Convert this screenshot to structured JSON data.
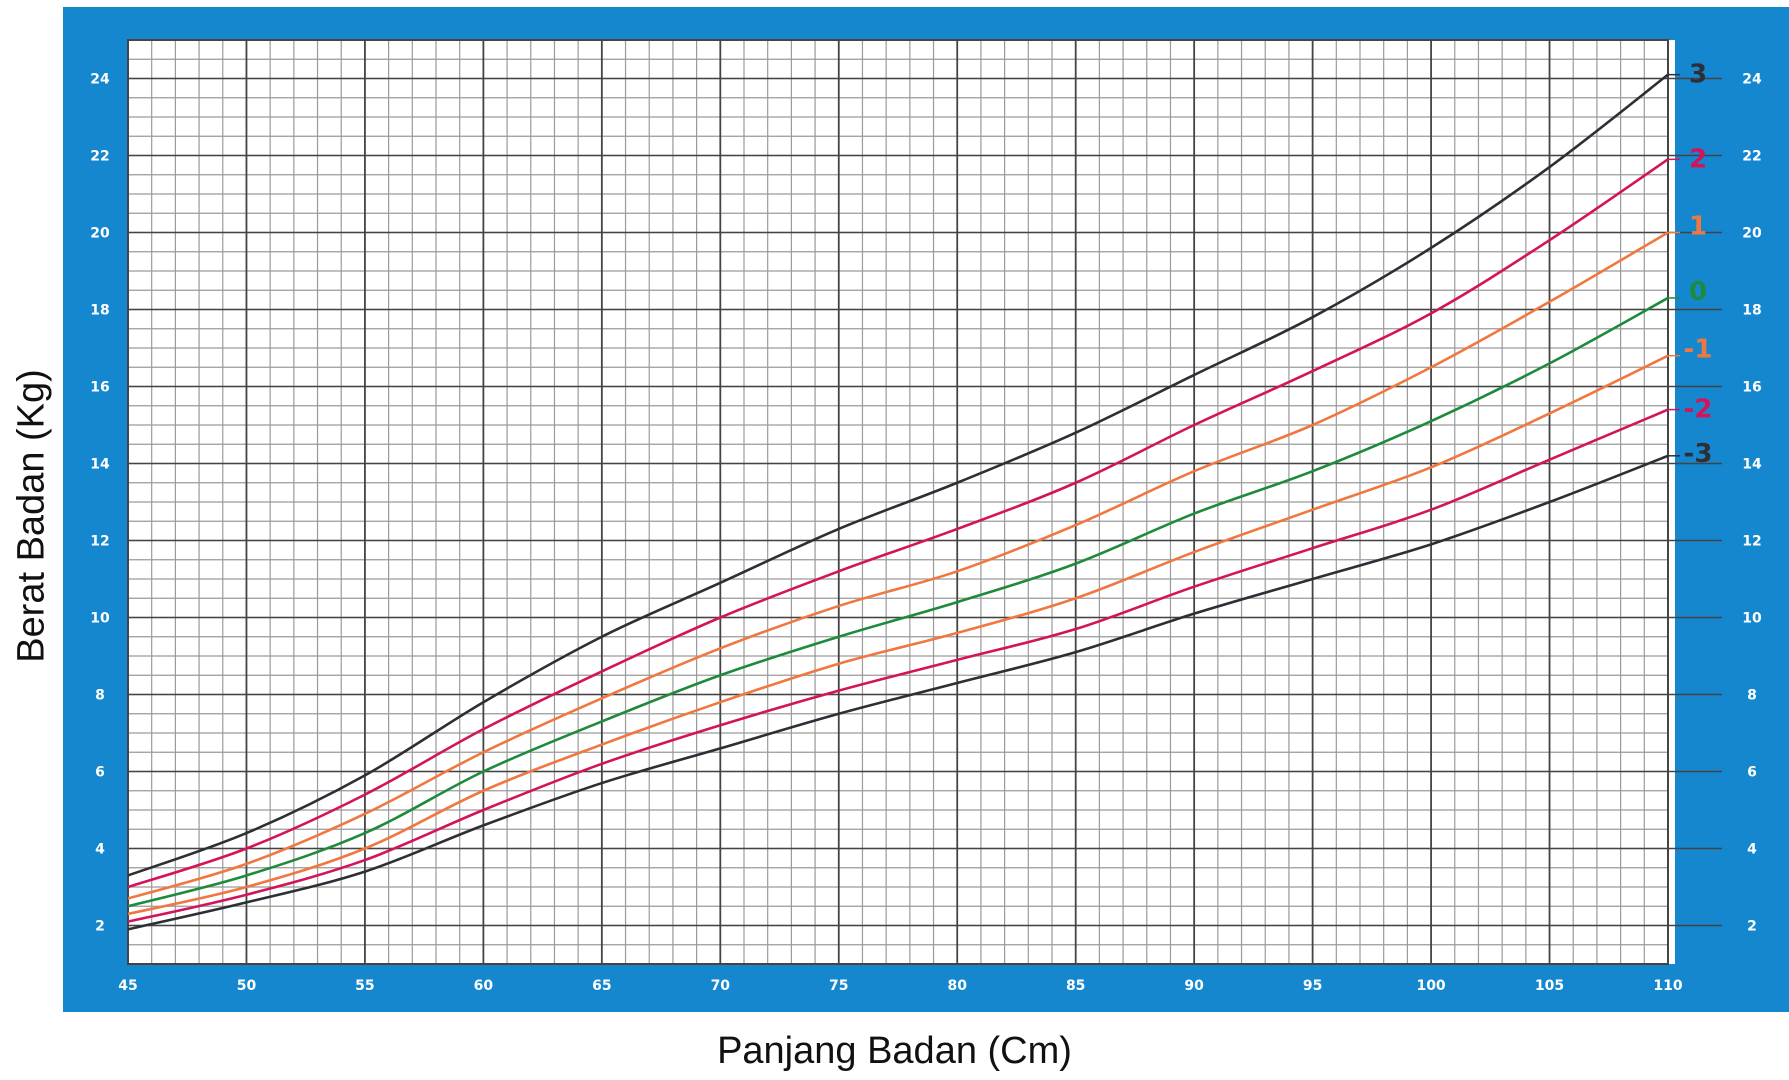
{
  "chart_data": {
    "type": "line",
    "title": "",
    "xlabel": "Panjang Badan (Cm)",
    "ylabel": "Berat Badan (Kg)",
    "xlim": [
      45,
      110
    ],
    "ylim": [
      1,
      25
    ],
    "x_ticks": [
      "45",
      "50",
      "55",
      "60",
      "65",
      "70",
      "75",
      "80",
      "85",
      "90",
      "95",
      "100",
      "105",
      "110"
    ],
    "y_ticks": [
      "2",
      "4",
      "6",
      "8",
      "10",
      "12",
      "14",
      "16",
      "18",
      "20",
      "22",
      "24"
    ],
    "grid": true,
    "x": [
      45,
      50,
      55,
      60,
      65,
      70,
      75,
      80,
      85,
      90,
      95,
      100,
      105,
      110
    ],
    "series": [
      {
        "name": "3",
        "color": "#2e2e36",
        "values": [
          3.3,
          4.4,
          5.9,
          7.8,
          9.5,
          10.9,
          12.3,
          13.5,
          14.8,
          16.3,
          17.8,
          19.6,
          21.7,
          24.1
        ]
      },
      {
        "name": "2",
        "color": "#d4145a",
        "values": [
          3.0,
          4.0,
          5.4,
          7.1,
          8.6,
          10.0,
          11.2,
          12.3,
          13.5,
          15.0,
          16.4,
          17.9,
          19.8,
          21.9
        ]
      },
      {
        "name": "1",
        "color": "#f07840",
        "values": [
          2.7,
          3.6,
          4.9,
          6.5,
          7.9,
          9.2,
          10.3,
          11.2,
          12.4,
          13.8,
          15.0,
          16.5,
          18.2,
          20.0
        ]
      },
      {
        "name": "0",
        "color": "#1e8a3c",
        "values": [
          2.5,
          3.3,
          4.4,
          6.0,
          7.3,
          8.5,
          9.5,
          10.4,
          11.4,
          12.7,
          13.8,
          15.1,
          16.6,
          18.3
        ]
      },
      {
        "name": "-1",
        "color": "#f07840",
        "values": [
          2.3,
          3.0,
          4.0,
          5.5,
          6.7,
          7.8,
          8.8,
          9.6,
          10.5,
          11.7,
          12.8,
          13.9,
          15.3,
          16.8
        ]
      },
      {
        "name": "-2",
        "color": "#d4145a",
        "values": [
          2.1,
          2.8,
          3.7,
          5.0,
          6.2,
          7.2,
          8.1,
          8.9,
          9.7,
          10.8,
          11.8,
          12.8,
          14.1,
          15.4
        ]
      },
      {
        "name": "-3",
        "color": "#2e2e36",
        "values": [
          1.9,
          2.6,
          3.4,
          4.6,
          5.7,
          6.6,
          7.5,
          8.3,
          9.1,
          10.1,
          11.0,
          11.9,
          13.0,
          14.2
        ]
      }
    ],
    "colors": {
      "frame": "#1487cf",
      "grid_minor": "#9a9a9a",
      "grid_major": "#444444",
      "plot_bg": "#ffffff"
    }
  }
}
